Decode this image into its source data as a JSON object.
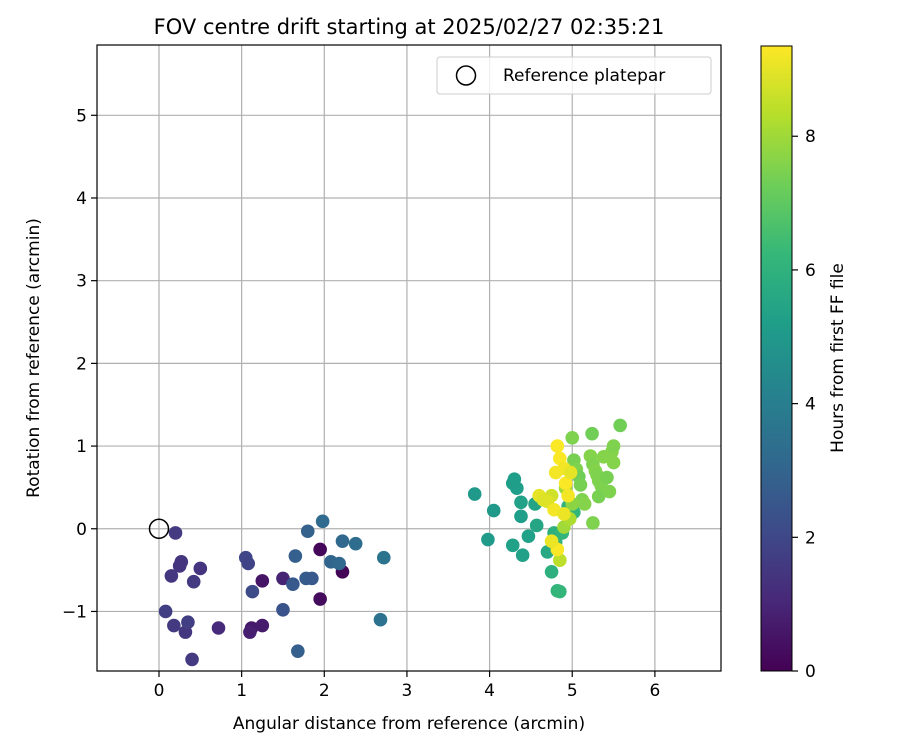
{
  "chart_data": {
    "type": "scatter",
    "title": "FOV centre drift starting at 2025/02/27 02:35:21",
    "xlabel": "Angular distance from reference (arcmin)",
    "ylabel": "Rotation from reference (arcmin)",
    "xlim": [
      -0.75,
      6.8
    ],
    "ylim": [
      -1.72,
      5.85
    ],
    "xticks": [
      0,
      1,
      2,
      3,
      4,
      5,
      6
    ],
    "xtick_labels": [
      "0",
      "1",
      "2",
      "3",
      "4",
      "5",
      "6"
    ],
    "yticks": [
      -1,
      0,
      1,
      2,
      3,
      4,
      5
    ],
    "ytick_labels": [
      "−1",
      "0",
      "1",
      "2",
      "3",
      "4",
      "5"
    ],
    "grid": true,
    "legend": {
      "placement": "top-right",
      "entries": [
        "Reference platepar"
      ]
    },
    "reference_point": {
      "x": 0.0,
      "y": 0.0,
      "label": "Reference platepar"
    },
    "colorbar": {
      "label": "Hours from first FF file",
      "range": [
        0,
        9.35
      ],
      "ticks": [
        0,
        2,
        4,
        6,
        8
      ],
      "tick_labels": [
        "0",
        "2",
        "4",
        "6",
        "8"
      ],
      "colormap": "viridis"
    },
    "series": [
      {
        "points": [
          {
            "x": 1.95,
            "y": -0.25,
            "h": 0.15
          },
          {
            "x": 2.22,
            "y": -0.52,
            "h": 0.1
          },
          {
            "x": 1.95,
            "y": -0.85,
            "h": 0.3
          },
          {
            "x": 1.25,
            "y": -0.63,
            "h": 0.5
          },
          {
            "x": 1.12,
            "y": -1.2,
            "h": 0.6
          },
          {
            "x": 1.25,
            "y": -1.17,
            "h": 0.7
          },
          {
            "x": 1.1,
            "y": -1.25,
            "h": 0.8
          },
          {
            "x": 1.5,
            "y": -0.6,
            "h": 0.9
          },
          {
            "x": 0.72,
            "y": -1.2,
            "h": 1.1
          },
          {
            "x": 0.2,
            "y": -0.05,
            "h": 1.6
          },
          {
            "x": 0.27,
            "y": -0.4,
            "h": 1.5
          },
          {
            "x": 0.25,
            "y": -0.45,
            "h": 1.4
          },
          {
            "x": 0.15,
            "y": -0.57,
            "h": 1.5
          },
          {
            "x": 0.42,
            "y": -0.64,
            "h": 1.6
          },
          {
            "x": 0.5,
            "y": -0.48,
            "h": 1.4
          },
          {
            "x": 0.08,
            "y": -1.0,
            "h": 1.7
          },
          {
            "x": 0.18,
            "y": -1.17,
            "h": 1.6
          },
          {
            "x": 0.32,
            "y": -1.25,
            "h": 1.5
          },
          {
            "x": 0.35,
            "y": -1.13,
            "h": 1.7
          },
          {
            "x": 0.4,
            "y": -1.58,
            "h": 1.6
          },
          {
            "x": 1.05,
            "y": -0.35,
            "h": 2.0
          },
          {
            "x": 1.08,
            "y": -0.42,
            "h": 1.9
          },
          {
            "x": 1.13,
            "y": -0.76,
            "h": 2.1
          },
          {
            "x": 1.5,
            "y": -0.98,
            "h": 2.4
          },
          {
            "x": 1.62,
            "y": -0.67,
            "h": 2.6
          },
          {
            "x": 1.65,
            "y": -0.33,
            "h": 2.8
          },
          {
            "x": 1.68,
            "y": -1.48,
            "h": 2.8
          },
          {
            "x": 1.8,
            "y": -0.03,
            "h": 2.9
          },
          {
            "x": 1.78,
            "y": -0.6,
            "h": 2.7
          },
          {
            "x": 1.85,
            "y": -0.6,
            "h": 2.6
          },
          {
            "x": 1.98,
            "y": 0.09,
            "h": 3.2
          },
          {
            "x": 2.08,
            "y": -0.4,
            "h": 3.0
          },
          {
            "x": 2.18,
            "y": -0.42,
            "h": 3.1
          },
          {
            "x": 2.22,
            "y": -0.15,
            "h": 3.1
          },
          {
            "x": 2.38,
            "y": -0.18,
            "h": 3.3
          },
          {
            "x": 2.68,
            "y": -1.1,
            "h": 3.5
          },
          {
            "x": 2.72,
            "y": -0.35,
            "h": 3.6
          },
          {
            "x": 3.82,
            "y": 0.42,
            "h": 5.0
          },
          {
            "x": 3.98,
            "y": -0.13,
            "h": 5.1
          },
          {
            "x": 4.05,
            "y": 0.22,
            "h": 5.0
          },
          {
            "x": 4.28,
            "y": 0.55,
            "h": 5.2
          },
          {
            "x": 4.3,
            "y": 0.6,
            "h": 5.2
          },
          {
            "x": 4.33,
            "y": 0.49,
            "h": 5.2
          },
          {
            "x": 4.28,
            "y": -0.2,
            "h": 5.3
          },
          {
            "x": 4.38,
            "y": 0.32,
            "h": 5.3
          },
          {
            "x": 4.38,
            "y": 0.15,
            "h": 5.2
          },
          {
            "x": 4.4,
            "y": -0.32,
            "h": 5.3
          },
          {
            "x": 4.47,
            "y": -0.09,
            "h": 5.3
          },
          {
            "x": 4.55,
            "y": 0.3,
            "h": 5.4
          },
          {
            "x": 4.57,
            "y": 0.04,
            "h": 5.5
          },
          {
            "x": 4.63,
            "y": 0.36,
            "h": 5.6
          },
          {
            "x": 4.7,
            "y": -0.28,
            "h": 5.6
          },
          {
            "x": 4.75,
            "y": -0.52,
            "h": 5.9
          },
          {
            "x": 4.78,
            "y": -0.05,
            "h": 5.9
          },
          {
            "x": 4.8,
            "y": -0.16,
            "h": 6.0
          },
          {
            "x": 4.82,
            "y": -0.75,
            "h": 6.1
          },
          {
            "x": 4.85,
            "y": -0.76,
            "h": 6.2
          },
          {
            "x": 4.88,
            "y": -0.05,
            "h": 6.1
          },
          {
            "x": 4.95,
            "y": 0.27,
            "h": 6.0
          },
          {
            "x": 5.02,
            "y": 0.2,
            "h": 6.2
          },
          {
            "x": 5.0,
            "y": 1.1,
            "h": 7.5
          },
          {
            "x": 5.02,
            "y": 0.83,
            "h": 7.4
          },
          {
            "x": 5.05,
            "y": 0.72,
            "h": 7.5
          },
          {
            "x": 5.08,
            "y": 0.63,
            "h": 7.3
          },
          {
            "x": 5.1,
            "y": 0.53,
            "h": 7.4
          },
          {
            "x": 5.12,
            "y": 0.35,
            "h": 7.5
          },
          {
            "x": 5.15,
            "y": 0.3,
            "h": 7.6
          },
          {
            "x": 5.22,
            "y": 0.88,
            "h": 7.6
          },
          {
            "x": 5.24,
            "y": 1.15,
            "h": 7.3
          },
          {
            "x": 5.25,
            "y": 0.78,
            "h": 7.5
          },
          {
            "x": 5.28,
            "y": 0.7,
            "h": 7.6
          },
          {
            "x": 5.3,
            "y": 0.65,
            "h": 7.5
          },
          {
            "x": 5.32,
            "y": 0.58,
            "h": 7.5
          },
          {
            "x": 5.35,
            "y": 0.52,
            "h": 7.5
          },
          {
            "x": 5.32,
            "y": 0.39,
            "h": 7.4
          },
          {
            "x": 5.38,
            "y": 0.87,
            "h": 7.6
          },
          {
            "x": 5.42,
            "y": 0.62,
            "h": 7.4
          },
          {
            "x": 5.45,
            "y": 0.45,
            "h": 7.5
          },
          {
            "x": 5.48,
            "y": 0.93,
            "h": 7.6
          },
          {
            "x": 5.5,
            "y": 1.0,
            "h": 7.5
          },
          {
            "x": 5.5,
            "y": 0.8,
            "h": 7.6
          },
          {
            "x": 5.58,
            "y": 1.25,
            "h": 7.3
          },
          {
            "x": 5.25,
            "y": 0.07,
            "h": 7.5
          },
          {
            "x": 5.0,
            "y": 0.3,
            "h": 7.7
          },
          {
            "x": 4.9,
            "y": 0.02,
            "h": 8.0
          },
          {
            "x": 4.97,
            "y": 0.12,
            "h": 8.2
          },
          {
            "x": 4.92,
            "y": 0.49,
            "h": 8.0
          },
          {
            "x": 4.85,
            "y": -0.38,
            "h": 8.4
          },
          {
            "x": 4.75,
            "y": 0.4,
            "h": 8.7
          },
          {
            "x": 4.7,
            "y": 0.33,
            "h": 8.9
          },
          {
            "x": 4.6,
            "y": 0.4,
            "h": 9.0
          },
          {
            "x": 4.65,
            "y": 0.35,
            "h": 8.9
          },
          {
            "x": 4.8,
            "y": 0.68,
            "h": 9.2
          },
          {
            "x": 4.82,
            "y": 1.0,
            "h": 9.3
          },
          {
            "x": 4.85,
            "y": 0.85,
            "h": 9.3
          },
          {
            "x": 4.9,
            "y": 0.73,
            "h": 9.2
          },
          {
            "x": 4.92,
            "y": 0.55,
            "h": 9.3
          },
          {
            "x": 4.95,
            "y": 0.4,
            "h": 9.2
          },
          {
            "x": 4.98,
            "y": 0.68,
            "h": 9.0
          },
          {
            "x": 4.78,
            "y": 0.23,
            "h": 9.2
          },
          {
            "x": 4.82,
            "y": -0.25,
            "h": 9.3
          },
          {
            "x": 4.75,
            "y": -0.15,
            "h": 9.1
          },
          {
            "x": 4.9,
            "y": 0.18,
            "h": 9.1
          }
        ]
      }
    ]
  }
}
